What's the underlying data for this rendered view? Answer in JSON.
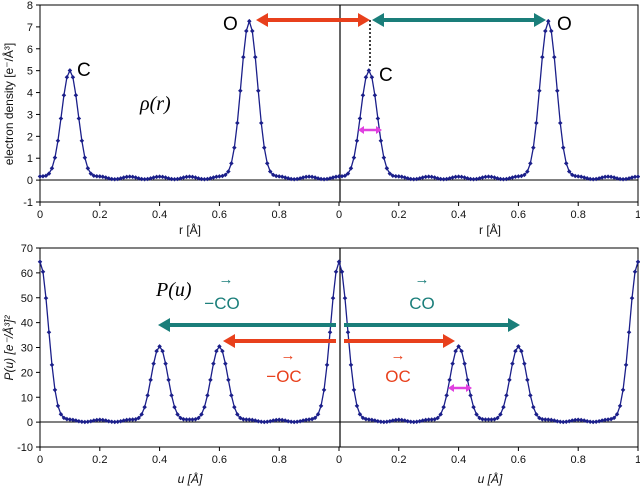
{
  "colors": {
    "series": "#1b1f8a",
    "marker": "#1b1f8a",
    "arrow_red": "#e8401c",
    "arrow_teal": "#1a7e7a",
    "pink": "#e040e0",
    "axis": "#000000"
  },
  "chart_data": [
    {
      "type": "line",
      "title": "",
      "formula": "ρ(r)",
      "xlabel": "r [Å]",
      "ylabel": "electron density [e⁻/Å³]",
      "xlim": [
        0,
        1
      ],
      "ylim": [
        -1,
        8
      ],
      "yticks": [
        "-1",
        "0",
        "1",
        "2",
        "3",
        "4",
        "5",
        "6",
        "7",
        "8"
      ],
      "xticks_left": [
        "0",
        "0.2",
        "0.4",
        "0.6",
        "0.8"
      ],
      "xticks_right": [
        "0",
        "0.2",
        "0.4",
        "0.6",
        "0.8",
        "1"
      ],
      "xlabel_left": "r [Å]",
      "xlabel_right": "r [Å]",
      "series": [
        {
          "description_ref": "repeating density of C at r≈0.1 and O at r≈0.7",
          "peaks": [
            {
              "center": 0.1,
              "height": 4.95,
              "label": "C"
            },
            {
              "center": 0.7,
              "height": 7.2,
              "label": "O"
            },
            {
              "center": 1.1,
              "height": 4.95,
              "label": "C"
            },
            {
              "center": 1.7,
              "height": 7.2,
              "label": "O"
            }
          ],
          "baseline": 0.1
        }
      ],
      "annotations": {
        "left_c": "C",
        "left_o": "O",
        "right_c": "C",
        "right_o": "O"
      }
    },
    {
      "type": "line",
      "title": "",
      "formula": "P(u)",
      "xlabel": "u [Å]",
      "ylabel": "P(u) [e⁻/Å³]²",
      "xlim": [
        0,
        1
      ],
      "ylim": [
        -10,
        70
      ],
      "yticks": [
        "-10",
        "0",
        "10",
        "20",
        "30",
        "40",
        "50",
        "60",
        "70"
      ],
      "xticks_left": [
        "0",
        "0.2",
        "0.4",
        "0.6",
        "0.8"
      ],
      "xticks_right": [
        "0",
        "0.2",
        "0.4",
        "0.6",
        "0.8",
        "1"
      ],
      "xlabel_left": "u [Å]",
      "xlabel_right": "u [Å]",
      "series": [
        {
          "description_ref": "Patterson function: origin peak and C–O vector peaks at u≈0.4 and u≈0.6",
          "peaks": [
            {
              "center": 0.0,
              "height": 64
            },
            {
              "center": 0.4,
              "height": 30
            },
            {
              "center": 0.6,
              "height": 30
            },
            {
              "center": 1.0,
              "height": 64
            },
            {
              "center": 1.4,
              "height": 30
            },
            {
              "center": 1.6,
              "height": 30
            },
            {
              "center": 2.0,
              "height": 64
            }
          ],
          "baseline": 0.5
        }
      ],
      "annotations": {
        "neg_co": "−CO",
        "co": "CO",
        "neg_oc": "−OC",
        "oc": "OC"
      }
    }
  ]
}
